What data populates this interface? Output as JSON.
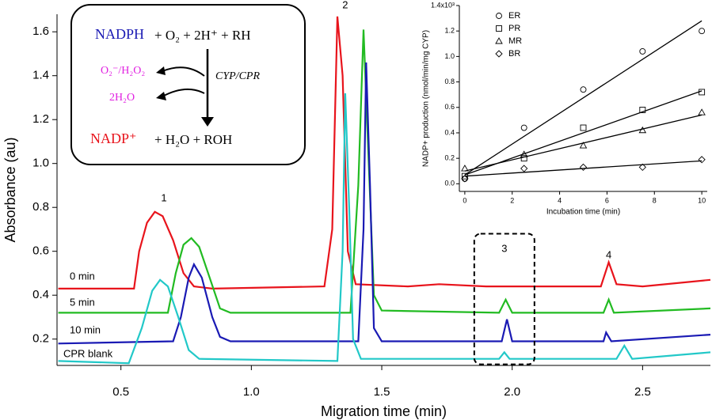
{
  "chart_data": [
    {
      "type": "line",
      "xlabel": "Migration time (min)",
      "ylabel": "Absorbance (au)",
      "xlim": [
        0.255,
        2.76
      ],
      "ylim": [
        0.08,
        1.68
      ],
      "xticks": [
        0.5,
        {
          "value": 1,
          "label": "1.0"
        },
        1.5,
        {
          "value": 2,
          "label": "2.0"
        },
        2.5
      ],
      "yticks": [
        0.2,
        0.4,
        0.6,
        0.8,
        {
          "value": 1,
          "label": "1.0"
        },
        1.2,
        1.4,
        1.6
      ],
      "series": [
        {
          "name": "0 min",
          "color": "#e8141c",
          "x": [
            0.26,
            0.55,
            0.57,
            0.6,
            0.63,
            0.66,
            0.7,
            0.74,
            0.78,
            0.85,
            1.28,
            1.31,
            1.33,
            1.35,
            1.37,
            1.4,
            1.6,
            1.72,
            1.9,
            2.34,
            2.37,
            2.4,
            2.5,
            2.76
          ],
          "values": [
            0.43,
            0.43,
            0.6,
            0.73,
            0.78,
            0.76,
            0.65,
            0.5,
            0.44,
            0.43,
            0.44,
            0.7,
            1.67,
            1.4,
            0.6,
            0.45,
            0.44,
            0.45,
            0.44,
            0.44,
            0.55,
            0.45,
            0.44,
            0.47
          ]
        },
        {
          "name": "5 min",
          "color": "#22bb22",
          "x": [
            0.26,
            0.68,
            0.71,
            0.74,
            0.77,
            0.8,
            0.84,
            0.88,
            0.92,
            1.38,
            1.41,
            1.43,
            1.45,
            1.47,
            1.5,
            1.95,
            1.975,
            2.0,
            2.35,
            2.37,
            2.39,
            2.76
          ],
          "values": [
            0.32,
            0.32,
            0.5,
            0.63,
            0.66,
            0.62,
            0.48,
            0.34,
            0.32,
            0.32,
            0.9,
            1.61,
            1.0,
            0.4,
            0.33,
            0.32,
            0.38,
            0.32,
            0.32,
            0.38,
            0.32,
            0.34
          ]
        },
        {
          "name": "10 min",
          "color": "#1a1ab4",
          "x": [
            0.26,
            0.7,
            0.73,
            0.76,
            0.78,
            0.81,
            0.85,
            0.88,
            0.92,
            1.41,
            1.43,
            1.44,
            1.455,
            1.47,
            1.5,
            1.96,
            1.98,
            2.0,
            2.35,
            2.36,
            2.38,
            2.76
          ],
          "values": [
            0.18,
            0.19,
            0.3,
            0.48,
            0.54,
            0.48,
            0.3,
            0.21,
            0.19,
            0.19,
            0.7,
            1.46,
            0.9,
            0.25,
            0.19,
            0.19,
            0.29,
            0.19,
            0.19,
            0.23,
            0.19,
            0.22
          ]
        },
        {
          "name": "CPR blank",
          "color": "#22c8c8",
          "x": [
            0.26,
            0.53,
            0.58,
            0.62,
            0.65,
            0.68,
            0.72,
            0.76,
            0.8,
            1.33,
            1.35,
            1.36,
            1.375,
            1.39,
            1.42,
            1.95,
            1.97,
            1.99,
            2.4,
            2.43,
            2.46,
            2.76
          ],
          "values": [
            0.1,
            0.09,
            0.25,
            0.42,
            0.47,
            0.44,
            0.3,
            0.15,
            0.11,
            0.1,
            0.6,
            1.32,
            0.8,
            0.2,
            0.11,
            0.11,
            0.14,
            0.11,
            0.11,
            0.17,
            0.11,
            0.14
          ]
        }
      ],
      "annotations": [
        {
          "text": "1",
          "x": 0.665,
          "y": 0.84
        },
        {
          "text": "2",
          "x": 1.36,
          "y": 1.72
        },
        {
          "text": "3",
          "x": 1.97,
          "y": 0.61
        },
        {
          "text": "4",
          "x": 2.37,
          "y": 0.58
        }
      ]
    },
    {
      "type": "scatter",
      "xlabel": "Incubation time (min)",
      "ylabel": "NADP+ production (nmol/min/mg CYP)",
      "xlim": [
        -0.23,
        10.23
      ],
      "ylim": [
        -0.06,
        1.4
      ],
      "xticks": [
        0,
        2,
        4,
        6,
        8,
        10
      ],
      "yticks": [
        {
          "value": 0,
          "label": "0.0"
        },
        0.2,
        0.4,
        0.6,
        0.8,
        {
          "value": 1,
          "label": "1.0"
        },
        1.2,
        {
          "value": 1.4,
          "label": "1.4x10³"
        }
      ],
      "x": [
        0,
        2.5,
        5,
        7.5,
        10
      ],
      "series": [
        {
          "name": "ER",
          "marker": "circle",
          "color": "#000000",
          "values": [
            0.04,
            0.44,
            0.74,
            1.04,
            1.2
          ],
          "fit": [
            0.07,
            1.28
          ]
        },
        {
          "name": "PR",
          "marker": "square",
          "color": "#000000",
          "values": [
            0.06,
            0.2,
            0.44,
            0.58,
            0.72
          ],
          "fit": [
            0.07,
            0.73
          ]
        },
        {
          "name": "MR",
          "marker": "triangle",
          "color": "#000000",
          "values": [
            0.12,
            0.23,
            0.3,
            0.42,
            0.56
          ],
          "fit": [
            0.1,
            0.54
          ]
        },
        {
          "name": "BR",
          "marker": "diamond",
          "color": "#000000",
          "values": [
            0.04,
            0.12,
            0.13,
            0.13,
            0.19
          ],
          "fit": [
            0.06,
            0.18
          ]
        }
      ]
    }
  ],
  "reaction": {
    "substrate": "NADPH",
    "reactants": "+ O₂ + 2H⁺ + RH",
    "side1": "O₂⁻/H₂O₂",
    "side2": "2H₂O",
    "enzyme": "CYP/CPR",
    "product": "NADP⁺",
    "products": "+ H₂O + ROH"
  }
}
